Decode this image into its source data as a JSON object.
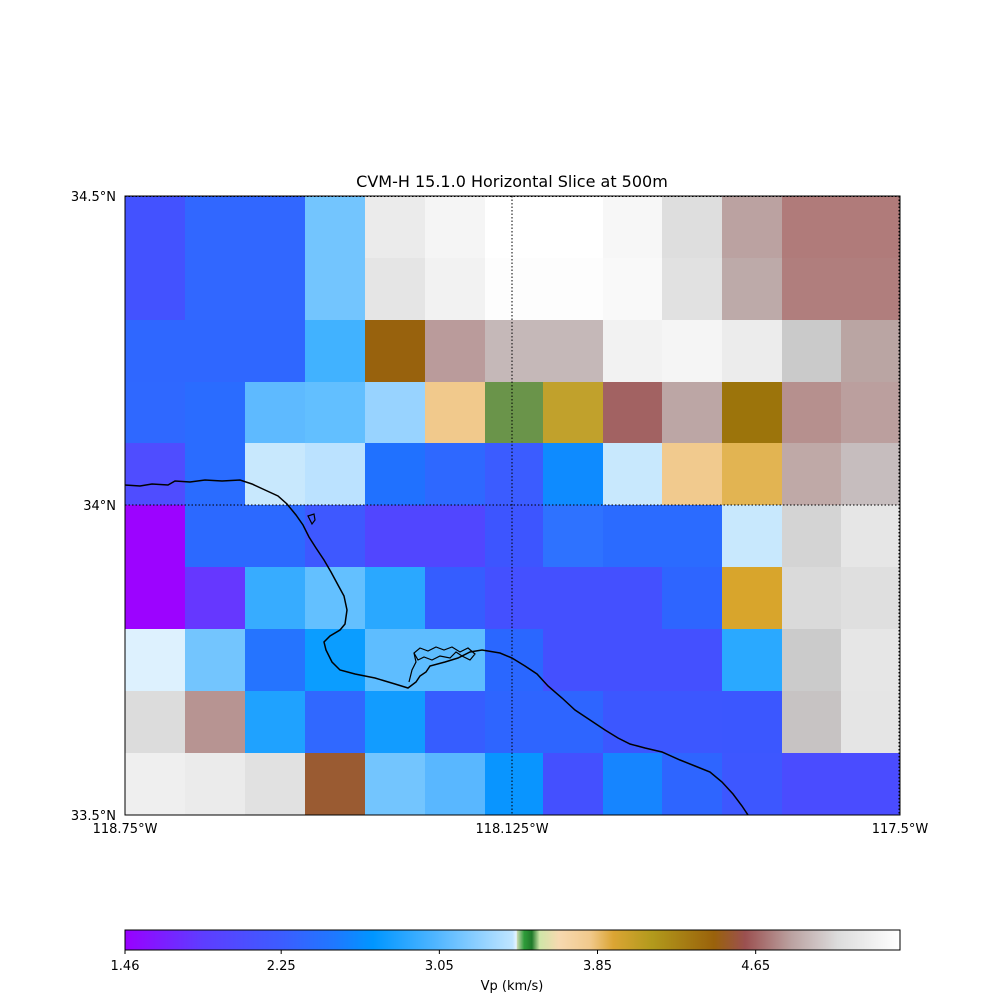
{
  "title": "CVM-H 15.1.0 Horizontal Slice at 500m",
  "map": {
    "lat_labels": [
      "34.5°N",
      "34°N",
      "33.5°N"
    ],
    "lon_labels": [
      "118.75°W",
      "118.125°W",
      "117.5°W"
    ],
    "lat_range": [
      33.5,
      34.5
    ],
    "lon_range": [
      -118.75,
      -117.5
    ],
    "gridlines": "dotted at 34°N and 118.125°W",
    "grid_colors": [
      [
        "#4352ff",
        "#3167ff",
        "#3167ff",
        "#73c5fe",
        "#ebebeb",
        "#f5f5f5",
        "#ffffff",
        "#ffffff",
        "#f7f7f7",
        "#dedede",
        "#bba2a1",
        "#b07b7a",
        "#b07b7a"
      ],
      [
        "#4352ff",
        "#3167ff",
        "#3167ff",
        "#73c5fe",
        "#e5e5e5",
        "#f2f2f2",
        "#fdfdfd",
        "#fdfdfd",
        "#f9f9f9",
        "#e1e1e1",
        "#bdaaa9",
        "#b07e7d",
        "#b07e7d"
      ],
      [
        "#2f67ff",
        "#2f67ff",
        "#2f67ff",
        "#41b2ff",
        "#98620d",
        "#ba9b9b",
        "#c5b8b8",
        "#c5b8b8",
        "#f2f2f2",
        "#f5f5f5",
        "#ececec",
        "#cacaca",
        "#baa5a3"
      ],
      [
        "#2f68ff",
        "#2a6cff",
        "#5ebaff",
        "#62bfff",
        "#98d3ff",
        "#f1c98c",
        "#6a944a",
        "#c1a12c",
        "#a26262",
        "#bca6a5",
        "#9c740b",
        "#b6908e",
        "#bb9f9e"
      ],
      [
        "#4f4dff",
        "#2a6cff",
        "#c8e8fd",
        "#bbe2ff",
        "#2071ff",
        "#2e68ff",
        "#3b5cff",
        "#0e8bff",
        "#c8e8fd",
        "#f1ca8e",
        "#e2b452",
        "#bfa9a7",
        "#c6bdbe"
      ],
      [
        "#9c03ff",
        "#2c69ff",
        "#2c69ff",
        "#3e58ff",
        "#5146ff",
        "#5146ff",
        "#3d55ff",
        "#2e72ff",
        "#2b6bff",
        "#2b6bff",
        "#c8e8fd",
        "#d4d4d4",
        "#e6e6e6"
      ],
      [
        "#9c03ff",
        "#6637ff",
        "#37acff",
        "#63c0ff",
        "#2aa8ff",
        "#355dff",
        "#4450ff",
        "#4450ff",
        "#4450ff",
        "#2e65ff",
        "#d8a52c",
        "#dadada",
        "#dfdfdf"
      ],
      [
        "#ddf1fe",
        "#73c5fe",
        "#2574ff",
        "#0b9dff",
        "#5ebdff",
        "#5ebdff",
        "#2a67ff",
        "#4450ff",
        "#4450ff",
        "#4450ff",
        "#2aa9ff",
        "#cbcbcb",
        "#e6e6e6"
      ],
      [
        "#dcdcdc",
        "#b79492",
        "#1fa2ff",
        "#3068ff",
        "#129cff",
        "#365dff",
        "#2e65ff",
        "#2e65ff",
        "#3c57ff",
        "#3c57ff",
        "#3b57ff",
        "#c7c3c3",
        "#e5e5e5"
      ],
      [
        "#efefef",
        "#ebebeb",
        "#e1e1e1",
        "#9a5b32",
        "#73c5fe",
        "#59b7ff",
        "#0995ff",
        "#4450ff",
        "#1685ff",
        "#2e65ff",
        "#3d57ff",
        "#4a4cff",
        "#4a4cff"
      ]
    ]
  },
  "colorbar": {
    "label": "Vp (km/s)",
    "ticks": [
      "1.46",
      "2.25",
      "3.05",
      "3.85",
      "4.65"
    ],
    "tick_values": [
      1.46,
      2.25,
      3.05,
      3.85,
      4.65
    ],
    "range": [
      1.46,
      5.38
    ],
    "stops": [
      {
        "v": 0.0,
        "c": "#9900ff"
      },
      {
        "v": 0.1,
        "c": "#5e3dff"
      },
      {
        "v": 0.2,
        "c": "#3d5cff"
      },
      {
        "v": 0.27,
        "c": "#1f78ff"
      },
      {
        "v": 0.32,
        "c": "#0096ff"
      },
      {
        "v": 0.4,
        "c": "#4fb5ff"
      },
      {
        "v": 0.5,
        "c": "#bfe5ff"
      },
      {
        "v": 0.505,
        "c": "#e6f4ff"
      },
      {
        "v": 0.506,
        "c": "#c8d8b0"
      },
      {
        "v": 0.515,
        "c": "#2e9c3a"
      },
      {
        "v": 0.525,
        "c": "#1f7a2a"
      },
      {
        "v": 0.535,
        "c": "#cfe6a8"
      },
      {
        "v": 0.56,
        "c": "#f7d9b0"
      },
      {
        "v": 0.6,
        "c": "#f1c98c"
      },
      {
        "v": 0.63,
        "c": "#dba534"
      },
      {
        "v": 0.68,
        "c": "#b29a1c"
      },
      {
        "v": 0.76,
        "c": "#9a620b"
      },
      {
        "v": 0.8,
        "c": "#9b5050"
      },
      {
        "v": 0.86,
        "c": "#bba2a1"
      },
      {
        "v": 0.92,
        "c": "#dcdcdc"
      },
      {
        "v": 1.0,
        "c": "#ffffff"
      }
    ]
  }
}
